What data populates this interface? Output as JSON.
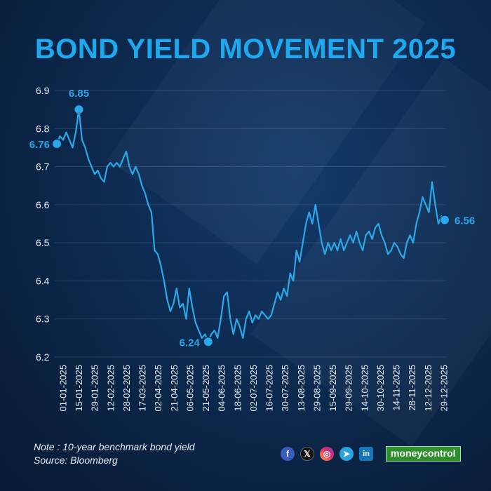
{
  "title": "BOND YIELD MOVEMENT 2025",
  "note": "Note : 10-year benchmark bond yield",
  "source": "Source: Bloomberg",
  "brand": "moneycontrol",
  "social_icons": [
    "facebook-icon",
    "x-icon",
    "instagram-icon",
    "telegram-icon",
    "linkedin-icon"
  ],
  "social_glyphs": [
    "f",
    "𝕏",
    "◎",
    "➤",
    "in"
  ],
  "chart_data": {
    "type": "line",
    "title": "BOND YIELD MOVEMENT 2025",
    "xlabel": "",
    "ylabel": "",
    "ylim": [
      6.2,
      6.9
    ],
    "y_ticks": [
      "6.2",
      "6.3",
      "6.4",
      "6.5",
      "6.6",
      "6.7",
      "6.8",
      "6.9"
    ],
    "x_tick_labels": [
      "01-01-2025",
      "15-01-2025",
      "29-01-2025",
      "12-02-2025",
      "28-02-2025",
      "17-03-2025",
      "02-04-2025",
      "21-04-2025",
      "06-05-2025",
      "21-05-2025",
      "04-06-2025",
      "18-06-2025",
      "02-07-2025",
      "16-07-2025",
      "30-07-2025",
      "13-08-2025",
      "29-08-2025",
      "15-09-2025",
      "29-09-2025",
      "14-10-2025",
      "30-10-2025",
      "14-11-2025",
      "28-11-2025",
      "12-12-2025",
      "29-12-2025"
    ],
    "grid": true,
    "line_color": "#29a8ea",
    "series": [
      {
        "values": [
          6.76,
          6.78,
          6.77,
          6.79,
          6.77,
          6.75,
          6.79,
          6.85,
          6.77,
          6.75,
          6.72,
          6.7,
          6.68,
          6.69,
          6.67,
          6.66,
          6.7,
          6.71,
          6.7,
          6.71,
          6.7,
          6.72,
          6.74,
          6.7,
          6.68,
          6.7,
          6.68,
          6.65,
          6.63,
          6.6,
          6.58,
          6.48,
          6.47,
          6.44,
          6.4,
          6.35,
          6.32,
          6.34,
          6.38,
          6.33,
          6.34,
          6.3,
          6.38,
          6.33,
          6.29,
          6.27,
          6.25,
          6.26,
          6.24,
          6.26,
          6.27,
          6.25,
          6.3,
          6.36,
          6.37,
          6.3,
          6.26,
          6.3,
          6.28,
          6.25,
          6.3,
          6.32,
          6.29,
          6.31,
          6.3,
          6.32,
          6.31,
          6.3,
          6.31,
          6.34,
          6.37,
          6.35,
          6.38,
          6.36,
          6.42,
          6.4,
          6.48,
          6.45,
          6.5,
          6.55,
          6.58,
          6.55,
          6.6,
          6.55,
          6.5,
          6.47,
          6.5,
          6.48,
          6.5,
          6.48,
          6.51,
          6.48,
          6.5,
          6.52,
          6.5,
          6.53,
          6.5,
          6.48,
          6.52,
          6.53,
          6.51,
          6.54,
          6.55,
          6.52,
          6.5,
          6.47,
          6.48,
          6.5,
          6.49,
          6.47,
          6.46,
          6.5,
          6.52,
          6.5,
          6.55,
          6.58,
          6.62,
          6.6,
          6.58,
          6.66,
          6.6,
          6.55,
          6.57,
          6.56
        ]
      }
    ],
    "annotations": [
      {
        "label": "6.76",
        "index": 0,
        "value": 6.76
      },
      {
        "label": "6.85",
        "index": 7,
        "value": 6.85
      },
      {
        "label": "6.24",
        "index": 48,
        "value": 6.24
      },
      {
        "label": "6.56",
        "index": 123,
        "value": 6.56
      }
    ]
  }
}
